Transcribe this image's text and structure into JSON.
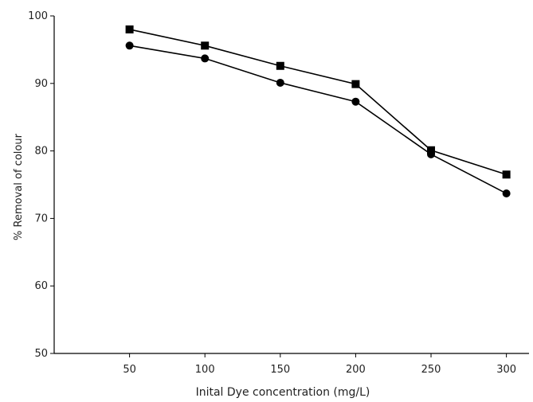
{
  "chart_data": {
    "type": "line",
    "title": "",
    "xlabel": "Inital Dye concentration (mg/L)",
    "ylabel": "% Removal of colour",
    "x": [
      50,
      100,
      150,
      200,
      250,
      300
    ],
    "xlim": [
      0,
      315
    ],
    "ylim": [
      50,
      100
    ],
    "xticks": [
      50,
      100,
      150,
      200,
      250,
      300
    ],
    "yticks": [
      50,
      60,
      70,
      80,
      90,
      100
    ],
    "grid": false,
    "legend": "none",
    "series": [
      {
        "marker": "square",
        "color": "#000000",
        "values": [
          98.0,
          95.6,
          92.6,
          89.9,
          80.1,
          76.5
        ]
      },
      {
        "marker": "circle",
        "color": "#000000",
        "values": [
          95.6,
          93.7,
          90.1,
          87.3,
          79.5,
          73.7
        ]
      }
    ]
  }
}
